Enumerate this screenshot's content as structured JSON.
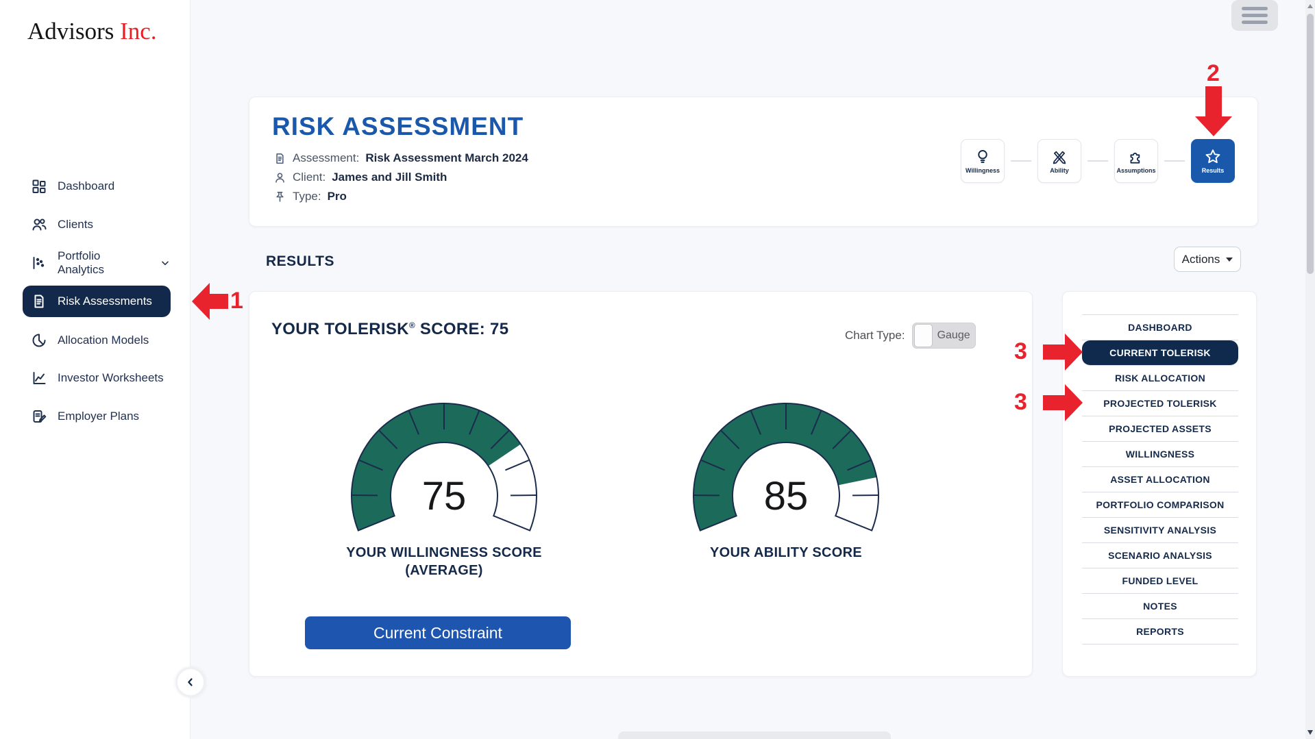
{
  "colors": {
    "navy": "#16294b",
    "brand_blue": "#1a58ab",
    "button_blue": "#1d55af",
    "annotation_red": "#e8232e",
    "logo_red": "#ed1c24",
    "gauge_green": "#1b6a5a",
    "page_bg": "#f7f8fb"
  },
  "brand": {
    "name": "Advisors",
    "suffix": "Inc."
  },
  "sidebar": {
    "items": [
      {
        "label": "Dashboard"
      },
      {
        "label": "Clients"
      },
      {
        "label": "Portfolio Analytics"
      },
      {
        "label": "Risk Assessments"
      },
      {
        "label": "Allocation Models"
      },
      {
        "label": "Investor Worksheets"
      },
      {
        "label": "Employer Plans"
      }
    ],
    "selected": "Risk Assessments"
  },
  "header": {
    "title": "RISK ASSESSMENT",
    "fields": [
      {
        "label": "Assessment:",
        "value": "Risk Assessment March 2024"
      },
      {
        "label": "Client:",
        "value": "James and Jill Smith"
      },
      {
        "label": "Type:",
        "value": "Pro"
      }
    ],
    "steps": [
      {
        "label": "Willingness"
      },
      {
        "label": "Ability"
      },
      {
        "label": "Assumptions"
      },
      {
        "label": "Results"
      }
    ],
    "active_step": "Results"
  },
  "results": {
    "section_title": "RESULTS",
    "actions_label": "Actions",
    "score_title_pre": "YOUR TOLERISK",
    "score_title_reg": "®",
    "score_title_post": " SCORE: 75",
    "tolerisk_score": 75,
    "chart_type_label": "Chart Type:",
    "chart_type_value": "Gauge",
    "constraint_button": "Current Constraint"
  },
  "chart_data": [
    {
      "type": "gauge",
      "value": 75,
      "min": 0,
      "max": 100,
      "label_line1": "YOUR WILLINGNESS SCORE",
      "label_line2": "(AVERAGE)",
      "fill_color": "#1b6a5a",
      "track_color": "#ffffff",
      "outline_color": "#1b2b4d",
      "start_angle_deg": 202,
      "sweep_deg": 224,
      "tick_interval": 10
    },
    {
      "type": "gauge",
      "value": 85,
      "min": 0,
      "max": 100,
      "label_line1": "YOUR ABILITY SCORE",
      "label_line2": "",
      "fill_color": "#1b6a5a",
      "track_color": "#ffffff",
      "outline_color": "#1b2b4d",
      "start_angle_deg": 202,
      "sweep_deg": 224,
      "tick_interval": 10
    }
  ],
  "right_menu": {
    "items": [
      "DASHBOARD",
      "CURRENT TOLERISK",
      "RISK ALLOCATION",
      "PROJECTED TOLERISK",
      "PROJECTED ASSETS",
      "WILLINGNESS",
      "ASSET ALLOCATION",
      "PORTFOLIO COMPARISON",
      "SENSITIVITY ANALYSIS",
      "SCENARIO ANALYSIS",
      "FUNDED LEVEL",
      "NOTES",
      "REPORTS"
    ],
    "selected": "CURRENT TOLERISK"
  },
  "annotations": {
    "labels": [
      "1",
      "2",
      "3",
      "3"
    ]
  }
}
